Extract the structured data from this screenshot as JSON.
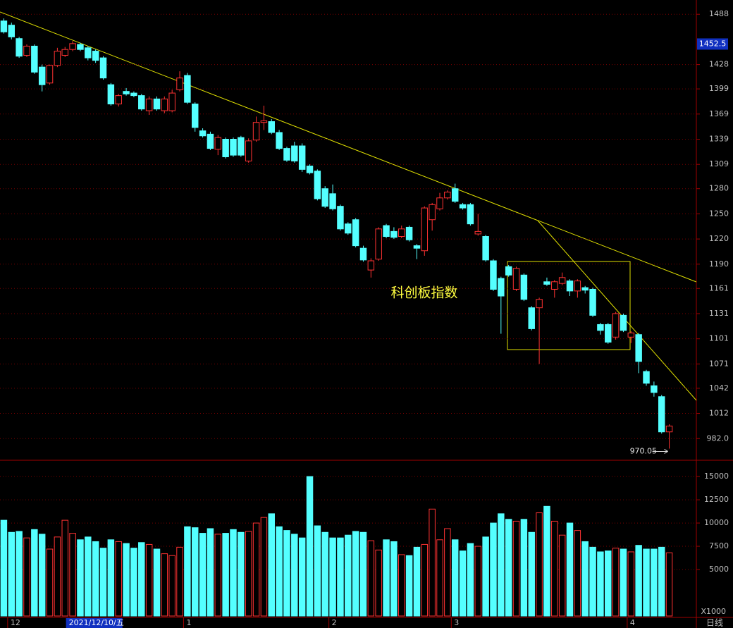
{
  "chart_data": {
    "type": "candlestick",
    "annotation": "科创板指数",
    "period_label": "日线",
    "up_color": "#ff3232",
    "down_color": "#54ffff",
    "ylim": [
      957,
      1505
    ],
    "yticks": [
      1488,
      1428,
      1399,
      1369,
      1339,
      1309,
      1280,
      1250,
      1220,
      1190,
      1161,
      1131,
      1101,
      1071,
      1042,
      1012,
      {
        "value": 982,
        "label": "982.0"
      }
    ],
    "last_price_marker": 1452.5,
    "xticks": [
      {
        "value": 1,
        "label": "12"
      },
      {
        "value": 24,
        "label": "1"
      },
      {
        "value": 43,
        "label": "2"
      },
      {
        "value": 59,
        "label": "3"
      },
      {
        "value": 82,
        "label": "4"
      }
    ],
    "cursor_label": {
      "value": 9,
      "label": "2021/12/10/五"
    },
    "ohlc": [
      [
        1480,
        1483,
        1465,
        1467
      ],
      [
        1475,
        1478,
        1458,
        1461
      ],
      [
        1459,
        1461,
        1436,
        1438
      ],
      [
        1439,
        1452,
        1437,
        1450
      ],
      [
        1450,
        1452,
        1417,
        1419
      ],
      [
        1425,
        1428,
        1396,
        1404
      ],
      [
        1406,
        1428,
        1404,
        1427
      ],
      [
        1427,
        1448,
        1425,
        1444
      ],
      [
        1439,
        1449,
        1437,
        1446
      ],
      [
        1446,
        1456,
        1444,
        1453
      ],
      [
        1452,
        1454,
        1444,
        1446
      ],
      [
        1448,
        1450,
        1433,
        1436
      ],
      [
        1444,
        1446,
        1430,
        1433
      ],
      [
        1436,
        1438,
        1410,
        1412
      ],
      [
        1404,
        1406,
        1379,
        1381
      ],
      [
        1381,
        1393,
        1378,
        1391
      ],
      [
        1396,
        1400,
        1391,
        1393
      ],
      [
        1394,
        1396,
        1389,
        1391
      ],
      [
        1391,
        1393,
        1373,
        1375
      ],
      [
        1373,
        1390,
        1368,
        1387
      ],
      [
        1387,
        1390,
        1373,
        1375
      ],
      [
        1373,
        1390,
        1370,
        1387
      ],
      [
        1373,
        1398,
        1371,
        1394
      ],
      [
        1398,
        1420,
        1396,
        1412
      ],
      [
        1415,
        1418,
        1381,
        1383
      ],
      [
        1381,
        1383,
        1348,
        1353
      ],
      [
        1349,
        1352,
        1341,
        1343
      ],
      [
        1345,
        1348,
        1326,
        1328
      ],
      [
        1327,
        1344,
        1320,
        1341
      ],
      [
        1339,
        1341,
        1316,
        1318
      ],
      [
        1339,
        1341,
        1318,
        1320
      ],
      [
        1341,
        1343,
        1318,
        1320
      ],
      [
        1313,
        1340,
        1311,
        1337
      ],
      [
        1338,
        1366,
        1336,
        1359
      ],
      [
        1359,
        1379,
        1350,
        1361
      ],
      [
        1360,
        1363,
        1345,
        1347
      ],
      [
        1347,
        1350,
        1326,
        1328
      ],
      [
        1328,
        1330,
        1312,
        1314
      ],
      [
        1331,
        1336,
        1311,
        1313
      ],
      [
        1331,
        1334,
        1300,
        1303
      ],
      [
        1307,
        1309,
        1297,
        1299
      ],
      [
        1301,
        1303,
        1266,
        1268
      ],
      [
        1280,
        1283,
        1257,
        1259
      ],
      [
        1274,
        1285,
        1254,
        1256
      ],
      [
        1259,
        1261,
        1230,
        1232
      ],
      [
        1238,
        1240,
        1225,
        1227
      ],
      [
        1243,
        1245,
        1210,
        1212
      ],
      [
        1209,
        1212,
        1193,
        1195
      ],
      [
        1183,
        1197,
        1174,
        1194
      ],
      [
        1196,
        1234,
        1194,
        1232
      ],
      [
        1236,
        1238,
        1221,
        1223
      ],
      [
        1229,
        1234,
        1220,
        1222
      ],
      [
        1223,
        1236,
        1221,
        1232
      ],
      [
        1234,
        1236,
        1217,
        1219
      ],
      [
        1212,
        1214,
        1196,
        1209
      ],
      [
        1206,
        1259,
        1200,
        1257
      ],
      [
        1243,
        1263,
        1230,
        1261
      ],
      [
        1256,
        1275,
        1254,
        1269
      ],
      [
        1269,
        1278,
        1267,
        1276
      ],
      [
        1280,
        1286,
        1263,
        1265
      ],
      [
        1261,
        1263,
        1255,
        1257
      ],
      [
        1261,
        1263,
        1236,
        1238
      ],
      [
        1226,
        1250,
        1224,
        1229
      ],
      [
        1223,
        1225,
        1193,
        1195
      ],
      [
        1194,
        1196,
        1158,
        1160
      ],
      [
        1173,
        1175,
        1107,
        1152
      ],
      [
        1187,
        1189,
        1175,
        1177
      ],
      [
        1160,
        1187,
        1158,
        1185
      ],
      [
        1177,
        1179,
        1146,
        1148
      ],
      [
        1138,
        1140,
        1111,
        1113
      ],
      [
        1138,
        1150,
        1071,
        1148
      ],
      [
        1169,
        1174,
        1164,
        1166
      ],
      [
        1160,
        1171,
        1150,
        1169
      ],
      [
        1167,
        1180,
        1165,
        1174
      ],
      [
        1170,
        1172,
        1152,
        1158
      ],
      [
        1158,
        1172,
        1150,
        1170
      ],
      [
        1162,
        1164,
        1155,
        1159
      ],
      [
        1160,
        1162,
        1127,
        1129
      ],
      [
        1118,
        1120,
        1106,
        1111
      ],
      [
        1118,
        1120,
        1095,
        1097
      ],
      [
        1103,
        1133,
        1100,
        1131
      ],
      [
        1129,
        1131,
        1109,
        1111
      ],
      [
        1103,
        1110,
        1096,
        1108
      ],
      [
        1106,
        1108,
        1060,
        1074
      ],
      [
        1062,
        1064,
        1045,
        1048
      ],
      [
        1045,
        1050,
        1032,
        1037
      ],
      [
        1032,
        1034,
        988,
        990
      ],
      [
        990,
        999,
        970.05,
        997
      ]
    ],
    "volume": {
      "unit_label": "X1000",
      "ylim": [
        0,
        16600
      ],
      "yticks": [
        15000,
        12500,
        10000,
        7500,
        5000
      ],
      "values": [
        10300,
        9000,
        9100,
        8400,
        9300,
        8800,
        7200,
        8500,
        10300,
        8900,
        8200,
        8500,
        8000,
        7300,
        8200,
        8000,
        7800,
        7300,
        7900,
        7700,
        7200,
        6700,
        6500,
        7400,
        9600,
        9500,
        8900,
        9400,
        8800,
        8900,
        9300,
        9000,
        9100,
        10000,
        10600,
        11000,
        9600,
        9200,
        8800,
        8400,
        15000,
        9700,
        9000,
        8400,
        8400,
        8700,
        9100,
        9000,
        8100,
        7100,
        8200,
        8000,
        6600,
        6500,
        7400,
        7700,
        11500,
        8200,
        9400,
        8200,
        7000,
        7800,
        7500,
        8500,
        10000,
        11000,
        10400,
        10200,
        10400,
        9000,
        11100,
        11800,
        10200,
        8700,
        10000,
        9200,
        8000,
        7400,
        6900,
        7000,
        7300,
        7200,
        6900,
        7600,
        7200,
        7200,
        7400,
        6800
      ]
    }
  }
}
